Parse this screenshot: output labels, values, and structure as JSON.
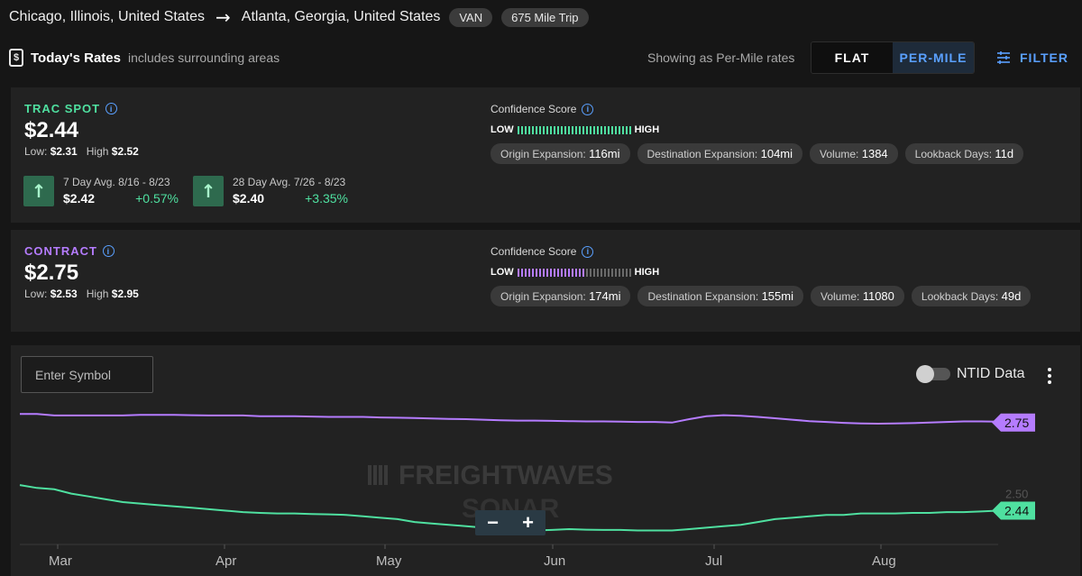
{
  "route": {
    "origin": "Chicago, Illinois, United States",
    "destination": "Atlanta, Georgia, United States",
    "equipment": "VAN",
    "trip": "675 Mile Trip"
  },
  "rates_header": {
    "title": "Today's Rates",
    "subtitle": "includes surrounding areas",
    "showing_text": "Showing as Per-Mile rates",
    "toggle_flat": "FLAT",
    "toggle_per_mile": "PER-MILE",
    "filter_label": "FILTER"
  },
  "spot": {
    "label": "TRAC SPOT",
    "price": "$2.44",
    "low_label": "Low:",
    "low": "$2.31",
    "high_label": "High",
    "high": "$2.52",
    "avg7_label": "7 Day Avg. 8/16 - 8/23",
    "avg7_value": "$2.42",
    "avg7_change": "+0.57%",
    "avg28_label": "28 Day Avg. 7/26 - 8/23",
    "avg28_value": "$2.40",
    "avg28_change": "+3.35%",
    "confidence_title": "Confidence Score",
    "confidence_low": "LOW",
    "confidence_high": "HIGH",
    "confidence_level": 1.0,
    "origin_exp_label": "Origin Expansion:",
    "origin_exp": "116mi",
    "dest_exp_label": "Destination Expansion:",
    "dest_exp": "104mi",
    "volume_label": "Volume:",
    "volume": "1384",
    "lookback_label": "Lookback Days:",
    "lookback": "11d"
  },
  "contract": {
    "label": "CONTRACT",
    "price": "$2.75",
    "low_label": "Low:",
    "low": "$2.53",
    "high_label": "High",
    "high": "$2.95",
    "confidence_title": "Confidence Score",
    "confidence_low": "LOW",
    "confidence_high": "HIGH",
    "confidence_level": 0.58,
    "origin_exp_label": "Origin Expansion:",
    "origin_exp": "174mi",
    "dest_exp_label": "Destination Expansion:",
    "dest_exp": "155mi",
    "volume_label": "Volume:",
    "volume": "11080",
    "lookback_label": "Lookback Days:",
    "lookback": "49d"
  },
  "chart_panel": {
    "symbol_placeholder": "Enter Symbol",
    "ntid_label": "NTID Data",
    "ntid_enabled": false,
    "watermark_line1": "FREIGHTWAVES",
    "watermark_line2": "SONAR",
    "zoom_out": "−",
    "zoom_in": "+"
  },
  "colors": {
    "spot": "#4fe0a0",
    "contract": "#b57cff",
    "accent": "#5aa0ff"
  },
  "chart_data": {
    "type": "line",
    "x_tick_labels": [
      "Mar",
      "Apr",
      "May",
      "Jun",
      "Jul",
      "Aug"
    ],
    "y_tick_labels": [
      "2.50"
    ],
    "ylim": [
      2.34,
      2.8
    ],
    "series": [
      {
        "name": "",
        "color": "#b57cff",
        "last_label": "2.75",
        "values": [
          2.78,
          2.78,
          2.775,
          2.775,
          2.775,
          2.775,
          2.775,
          2.777,
          2.777,
          2.777,
          2.776,
          2.775,
          2.775,
          2.775,
          2.772,
          2.772,
          2.772,
          2.771,
          2.77,
          2.77,
          2.77,
          2.768,
          2.767,
          2.766,
          2.764,
          2.763,
          2.762,
          2.76,
          2.758,
          2.757,
          2.757,
          2.756,
          2.755,
          2.754,
          2.754,
          2.753,
          2.752,
          2.752,
          2.75,
          2.762,
          2.772,
          2.776,
          2.774,
          2.77,
          2.765,
          2.76,
          2.755,
          2.752,
          2.749,
          2.747,
          2.746,
          2.747,
          2.748,
          2.75,
          2.752,
          2.754,
          2.754,
          2.753
        ]
      },
      {
        "name": "",
        "color": "#4fe0a0",
        "last_label": "2.44",
        "values": [
          2.53,
          2.52,
          2.515,
          2.5,
          2.49,
          2.48,
          2.47,
          2.465,
          2.46,
          2.455,
          2.45,
          2.445,
          2.44,
          2.435,
          2.432,
          2.43,
          2.43,
          2.428,
          2.427,
          2.425,
          2.42,
          2.415,
          2.41,
          2.4,
          2.395,
          2.39,
          2.385,
          2.38,
          2.375,
          2.37,
          2.37,
          2.372,
          2.375,
          2.373,
          2.372,
          2.372,
          2.37,
          2.37,
          2.37,
          2.375,
          2.38,
          2.385,
          2.39,
          2.4,
          2.41,
          2.415,
          2.42,
          2.425,
          2.425,
          2.43,
          2.43,
          2.43,
          2.432,
          2.432,
          2.435,
          2.435,
          2.437,
          2.44
        ]
      }
    ]
  }
}
